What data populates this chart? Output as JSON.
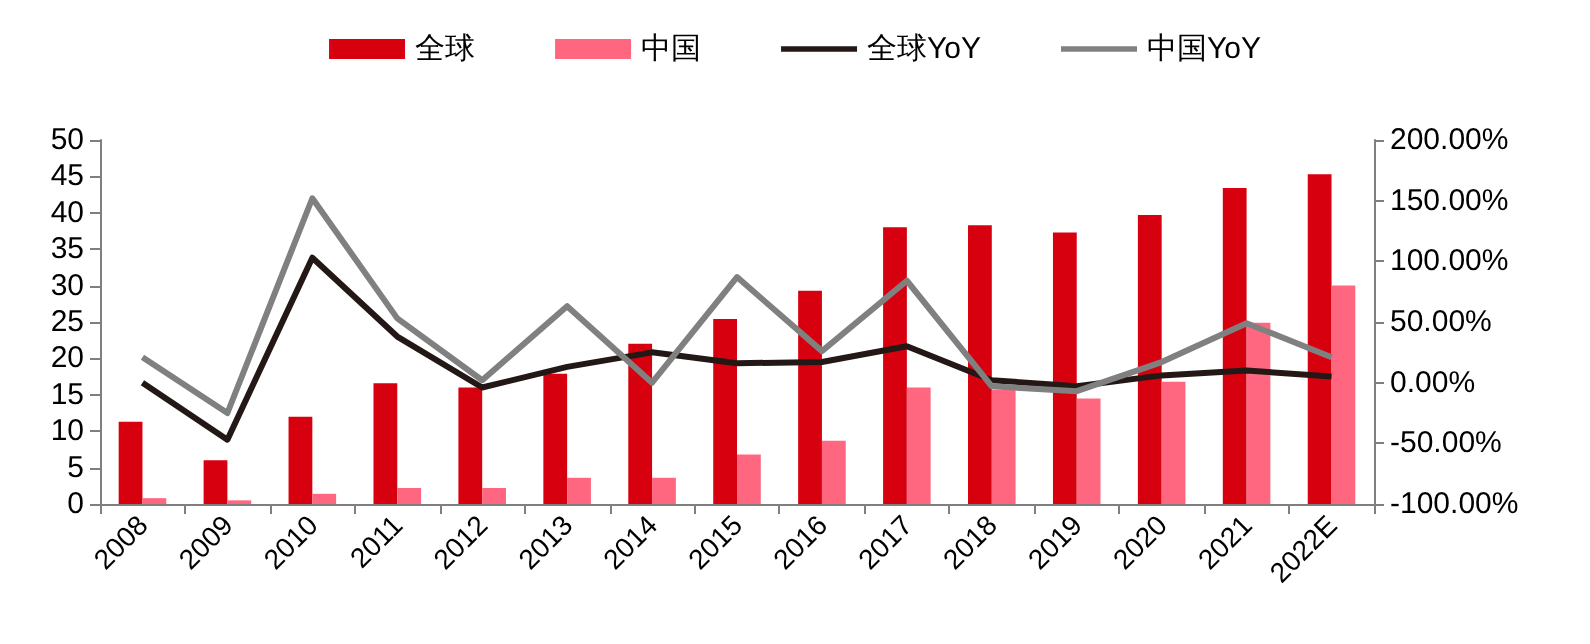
{
  "chart_data": {
    "type": "bar",
    "categories": [
      "2008",
      "2009",
      "2010",
      "2011",
      "2012",
      "2013",
      "2014",
      "2015",
      "2016",
      "2017",
      "2018",
      "2019",
      "2020",
      "2021",
      "2022E"
    ],
    "series": [
      {
        "name": "全球",
        "color": "#d7000f",
        "values": [
          11.3,
          6,
          12,
          16.6,
          16,
          17.9,
          22,
          25.4,
          29.3,
          38,
          38.3,
          37.3,
          39.7,
          43.4,
          45.3
        ]
      },
      {
        "name": "中国",
        "color": "#ff6680",
        "values": [
          0.8,
          0.5,
          1.4,
          2.2,
          2.2,
          3.6,
          3.6,
          6.8,
          8.7,
          16,
          15.7,
          14.5,
          16.8,
          24.9,
          30
        ]
      },
      {
        "name": "全球YoY",
        "type": "line",
        "axis": "y2",
        "color": "#231815",
        "values": [
          0,
          -47,
          103,
          38,
          -4,
          13,
          25,
          16,
          17,
          30,
          2,
          -3,
          6,
          10,
          5
        ]
      },
      {
        "name": "中国YoY",
        "type": "line",
        "axis": "y2",
        "color": "#808080",
        "values": [
          21,
          -25,
          152,
          53,
          2,
          63,
          0,
          87,
          26,
          84,
          -3,
          -7,
          17,
          49,
          21
        ]
      }
    ],
    "ylim": [
      0,
      50
    ],
    "yticks": [
      0,
      5,
      10,
      15,
      20,
      25,
      30,
      35,
      40,
      45,
      50
    ],
    "y2lim": [
      -100,
      200
    ],
    "y2ticks": [
      {
        "value": -100,
        "label": "-100.00%"
      },
      {
        "value": -50,
        "label": "-50.00%"
      },
      {
        "value": 0,
        "label": "0.00%"
      },
      {
        "value": 50,
        "label": "50.00%"
      },
      {
        "value": 100,
        "label": "100.00%"
      },
      {
        "value": 150,
        "label": "150.00%"
      },
      {
        "value": 200,
        "label": "200.00%"
      }
    ],
    "legend": "top",
    "grid": false,
    "marker": "none"
  }
}
